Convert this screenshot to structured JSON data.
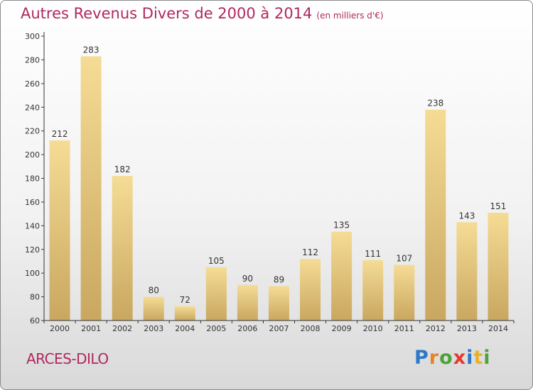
{
  "title": "Autres Revenus Divers de 2000 à 2014",
  "subtitle": "(en milliers d'€)",
  "commune": "ARCES-DILO",
  "logo": {
    "letters": [
      {
        "ch": "P",
        "color": "#2f77c7"
      },
      {
        "ch": "r",
        "color": "#e8832a"
      },
      {
        "ch": "o",
        "color": "#4aa43a"
      },
      {
        "ch": "x",
        "color": "#e23a2f"
      },
      {
        "ch": "i",
        "color": "#2f77c7"
      },
      {
        "ch": "t",
        "color": "#e8b12a"
      },
      {
        "ch": "i",
        "color": "#4aa43a"
      }
    ]
  },
  "chart_data": {
    "type": "bar",
    "title": "Autres Revenus Divers de 2000 à 2014",
    "subtitle": "(en milliers d'€)",
    "categories": [
      "2000",
      "2001",
      "2002",
      "2003",
      "2004",
      "2005",
      "2006",
      "2007",
      "2008",
      "2009",
      "2010",
      "2011",
      "2012",
      "2013",
      "2014"
    ],
    "values": [
      212,
      283,
      182,
      80,
      72,
      105,
      90,
      89,
      112,
      135,
      111,
      107,
      238,
      143,
      151
    ],
    "ylim": [
      60,
      300
    ],
    "yticks": [
      60,
      80,
      100,
      120,
      140,
      160,
      180,
      200,
      220,
      240,
      260,
      280,
      300
    ],
    "grid": false,
    "legend": "none",
    "colors": {
      "bar_light": "#f5dc95",
      "bar_dark": "#c9a760",
      "axis": "#333333",
      "text": "#333333"
    }
  }
}
